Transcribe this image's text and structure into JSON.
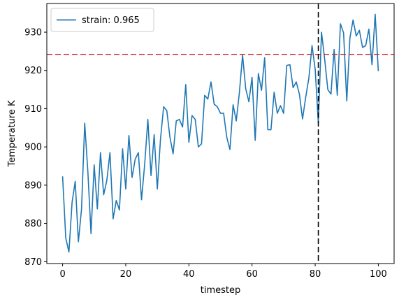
{
  "chart_data": {
    "type": "line",
    "xlabel": "timestep",
    "ylabel": "Temperature K",
    "xlim": [
      -5,
      105
    ],
    "ylim": [
      869.5,
      937.5
    ],
    "xticks": [
      0,
      20,
      40,
      60,
      80,
      100
    ],
    "yticks": [
      870,
      880,
      890,
      900,
      910,
      920,
      930
    ],
    "grid": false,
    "legend_position": "top-left",
    "series": [
      {
        "name": "strain: 0.965",
        "color": "#1f77b4",
        "x": [
          0,
          1,
          2,
          3,
          4,
          5,
          6,
          7,
          8,
          9,
          10,
          11,
          12,
          13,
          14,
          15,
          16,
          17,
          18,
          19,
          20,
          21,
          22,
          23,
          24,
          25,
          26,
          27,
          28,
          29,
          30,
          31,
          32,
          33,
          34,
          35,
          36,
          37,
          38,
          39,
          40,
          41,
          42,
          43,
          44,
          45,
          46,
          47,
          48,
          49,
          50,
          51,
          52,
          53,
          54,
          55,
          56,
          57,
          58,
          59,
          60,
          61,
          62,
          63,
          64,
          65,
          66,
          67,
          68,
          69,
          70,
          71,
          72,
          73,
          74,
          75,
          76,
          77,
          78,
          79,
          80,
          81,
          82,
          83,
          84,
          85,
          86,
          87,
          88,
          89,
          90,
          91,
          92,
          93,
          94,
          95,
          96,
          97,
          98,
          99,
          100
        ],
        "values": [
          892.3,
          876.2,
          872.5,
          885.5,
          891.0,
          875.2,
          883.8,
          906.2,
          893.5,
          877.3,
          895.3,
          883.8,
          898.5,
          887.5,
          891.2,
          898.5,
          881.2,
          886.0,
          883.5,
          899.5,
          889.0,
          903.0,
          892.0,
          896.8,
          898.5,
          886.2,
          895.5,
          907.2,
          892.5,
          903.2,
          889.0,
          902.0,
          910.5,
          909.5,
          902.5,
          898.2,
          906.8,
          907.2,
          905.2,
          916.3,
          901.2,
          908.2,
          907.2,
          900.0,
          900.8,
          913.5,
          912.5,
          917.0,
          911.2,
          910.5,
          908.8,
          908.8,
          902.5,
          899.3,
          911.0,
          906.8,
          914.3,
          924.0,
          915.2,
          911.8,
          918.2,
          901.7,
          919.2,
          914.8,
          923.3,
          904.5,
          904.5,
          914.3,
          908.8,
          910.8,
          908.8,
          921.3,
          921.5,
          915.5,
          917.0,
          913.8,
          907.3,
          913.0,
          918.0,
          926.5,
          920.3,
          906.2,
          930.0,
          923.0,
          915.0,
          913.8,
          925.5,
          913.5,
          932.2,
          929.8,
          912.0,
          928.5,
          933.2,
          929.0,
          930.5,
          926.0,
          926.5,
          930.8,
          921.5,
          934.7,
          919.8
        ]
      }
    ],
    "annotations": [
      {
        "kind": "hline",
        "y": 924.2,
        "color": "#d62728",
        "dash": "dashed"
      },
      {
        "kind": "vline",
        "x": 81,
        "color": "#000000",
        "dash": "dashed"
      }
    ]
  }
}
